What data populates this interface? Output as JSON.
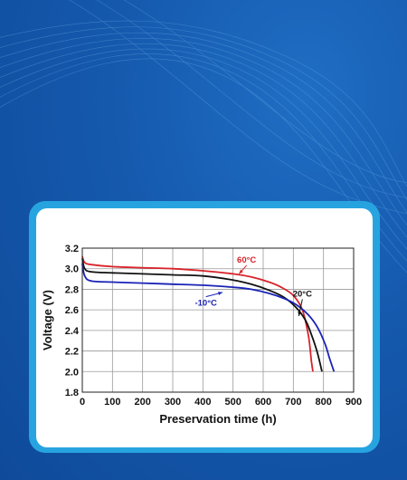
{
  "colors": {
    "background": "#1559ad",
    "card_border": "#27a4e0",
    "card": "#ffffff"
  },
  "chart_data": {
    "type": "line",
    "xlabel": "Preservation time (h)",
    "ylabel": "Voltage (V)",
    "xlim": [
      0,
      900
    ],
    "ylim": [
      1.8,
      3.2
    ],
    "xticks": [
      0,
      100,
      200,
      300,
      400,
      500,
      600,
      700,
      800,
      900
    ],
    "yticks": [
      1.8,
      2.0,
      2.2,
      2.4,
      2.6,
      2.8,
      3.0,
      3.2
    ],
    "xtick_labels": [
      "0",
      "100",
      "200",
      "300",
      "400",
      "500",
      "600",
      "700",
      "800",
      "900"
    ],
    "ytick_labels": [
      "1.8",
      "2.0",
      "2.2",
      "2.4",
      "2.6",
      "2.8",
      "3.0",
      "3.2"
    ],
    "grid": true,
    "series": [
      {
        "name": "60°C",
        "color": "#d8232a",
        "x": [
          0,
          8,
          30,
          100,
          200,
          300,
          400,
          500,
          560,
          620,
          660,
          700,
          730,
          750,
          760,
          765
        ],
        "y": [
          3.12,
          3.06,
          3.04,
          3.02,
          3.01,
          3.0,
          2.98,
          2.95,
          2.92,
          2.87,
          2.82,
          2.74,
          2.6,
          2.35,
          2.1,
          2.0
        ]
      },
      {
        "name": "20°C",
        "color": "#111111",
        "x": [
          0,
          8,
          30,
          100,
          200,
          300,
          400,
          500,
          560,
          620,
          670,
          710,
          740,
          760,
          780,
          795
        ],
        "y": [
          3.1,
          3.0,
          2.97,
          2.96,
          2.95,
          2.94,
          2.93,
          2.89,
          2.85,
          2.79,
          2.72,
          2.62,
          2.5,
          2.36,
          2.18,
          2.0
        ]
      },
      {
        "name": "-10°C",
        "color": "#1a23b5",
        "x": [
          0,
          8,
          30,
          100,
          200,
          300,
          400,
          500,
          560,
          620,
          670,
          710,
          750,
          780,
          805,
          820,
          835
        ],
        "y": [
          3.05,
          2.93,
          2.88,
          2.87,
          2.86,
          2.85,
          2.84,
          2.82,
          2.8,
          2.76,
          2.71,
          2.65,
          2.55,
          2.43,
          2.27,
          2.13,
          2.0
        ]
      }
    ],
    "annotations": [
      {
        "text": "60°C",
        "color": "#d8232a",
        "x": 545,
        "y": 3.06,
        "target_x": 520,
        "target_y": 2.95
      },
      {
        "text": "20°C",
        "color": "#111111",
        "x": 730,
        "y": 2.73,
        "target_x": 718,
        "target_y": 2.54
      },
      {
        "text": "-10°C",
        "color": "#1a23b5",
        "x": 410,
        "y": 2.64,
        "target_x": 465,
        "target_y": 2.77
      }
    ]
  }
}
